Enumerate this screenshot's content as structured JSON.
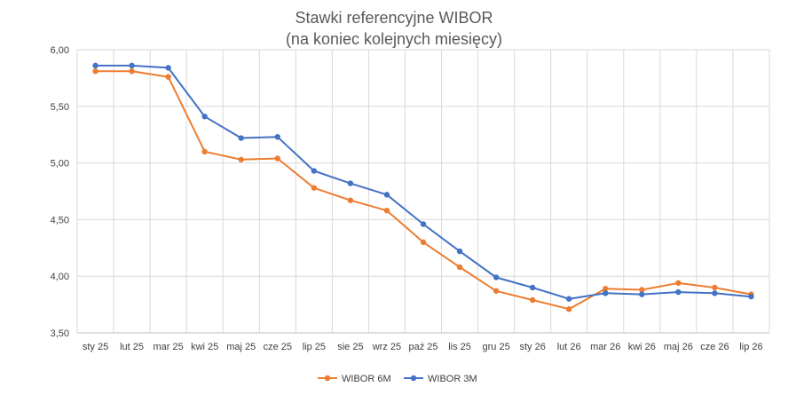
{
  "chart_data": {
    "type": "line",
    "title": "Stawki referencyjne WIBOR",
    "subtitle": "(na koniec kolejnych miesięcy)",
    "xlabel": "",
    "ylabel": "",
    "categories": [
      "sty 25",
      "lut 25",
      "mar 25",
      "kwi 25",
      "maj 25",
      "cze 25",
      "lip 25",
      "sie 25",
      "wrz 25",
      "paź 25",
      "lis 25",
      "gru 25",
      "sty 26",
      "lut 26",
      "mar 26",
      "kwi 26",
      "maj 26",
      "cze 26",
      "lip 26"
    ],
    "y_ticks": [
      "3,50",
      "4,00",
      "4,50",
      "5,00",
      "5,50",
      "6,00"
    ],
    "y_tick_values": [
      3.5,
      4.0,
      4.5,
      5.0,
      5.5,
      6.0
    ],
    "ylim": [
      3.5,
      6.0
    ],
    "grid": true,
    "legend_position": "bottom",
    "series": [
      {
        "name": "WIBOR 6M",
        "color": "#ed7d31",
        "values": [
          5.81,
          5.81,
          5.76,
          5.1,
          5.03,
          5.04,
          4.78,
          4.67,
          4.58,
          4.3,
          4.08,
          3.87,
          3.79,
          3.71,
          3.89,
          3.88,
          3.94,
          3.9,
          3.84
        ]
      },
      {
        "name": "WIBOR 3M",
        "color": "#4472c4",
        "values": [
          5.86,
          5.86,
          5.84,
          5.41,
          5.22,
          5.23,
          4.93,
          4.82,
          4.72,
          4.46,
          4.22,
          3.99,
          3.9,
          3.8,
          3.85,
          3.84,
          3.86,
          3.85,
          3.82
        ]
      }
    ]
  }
}
